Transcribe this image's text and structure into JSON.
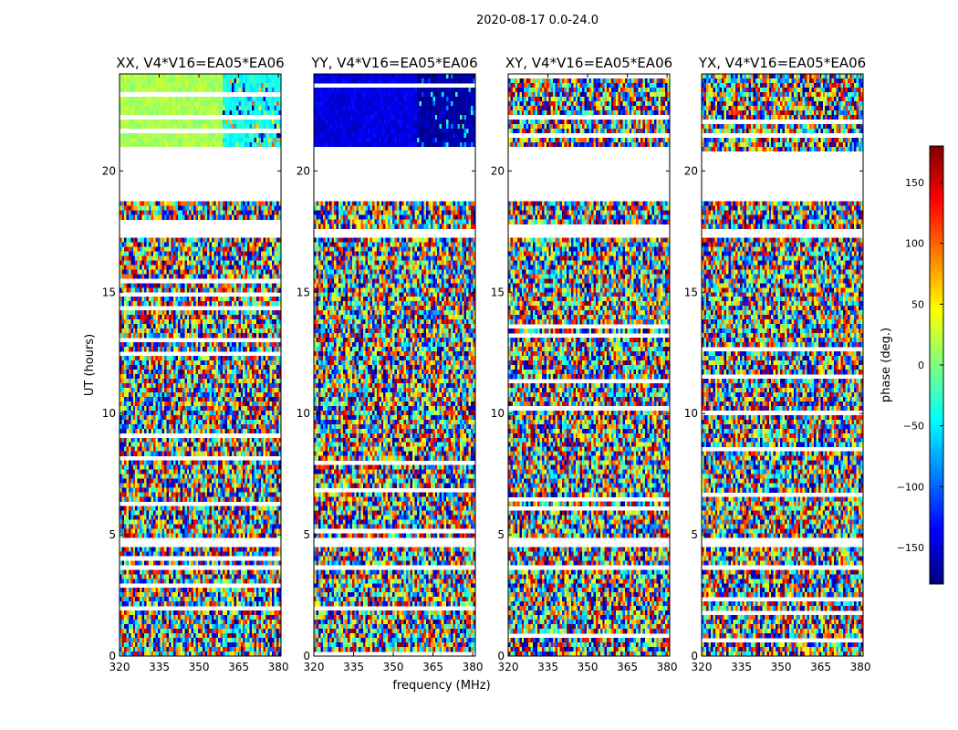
{
  "chart_data": {
    "type": "heatmap",
    "suptitle": "2020-08-17 0.0-24.0",
    "ylabel": "UT (hours)",
    "xlabel": "frequency (MHz)",
    "xlim": [
      320,
      381
    ],
    "ylim": [
      0,
      24
    ],
    "xticks": [
      "320",
      "335",
      "350",
      "365",
      "380"
    ],
    "yticks": [
      "0",
      "5",
      "10",
      "15",
      "20"
    ],
    "panels": [
      {
        "title": "XX, V4*V16=EA05*EA06",
        "top_band_phase_deg": 15,
        "top_band_phase_deg_high_freq": -40
      },
      {
        "title": "YY, V4*V16=EA05*EA06",
        "top_band_phase_deg": -145,
        "top_band_phase_deg_high_freq": -165
      },
      {
        "title": "XY, V4*V16=EA05*EA06",
        "top_band_phase_deg": null,
        "top_band_phase_deg_high_freq": null
      },
      {
        "title": "YX, V4*V16=EA05*EA06",
        "top_band_phase_deg": null,
        "top_band_phase_deg_high_freq": null
      }
    ],
    "flagged_ut_ranges_hours": [
      [
        18.7,
        20.8
      ],
      [
        17.2,
        17.6
      ],
      [
        4.5,
        4.8
      ],
      [
        3.6,
        3.8
      ]
    ],
    "colorbar": {
      "label": "phase (deg.)",
      "range": [
        -180,
        180
      ],
      "ticks": [
        "150",
        "100",
        "50",
        "0",
        "−50",
        "−100",
        "−150"
      ],
      "colormap": "jet",
      "colors": [
        "#00007f",
        "#0000ff",
        "#007fff",
        "#00ffff",
        "#7fff7f",
        "#ffff00",
        "#ff7f00",
        "#ff0000",
        "#7f0000"
      ]
    }
  }
}
